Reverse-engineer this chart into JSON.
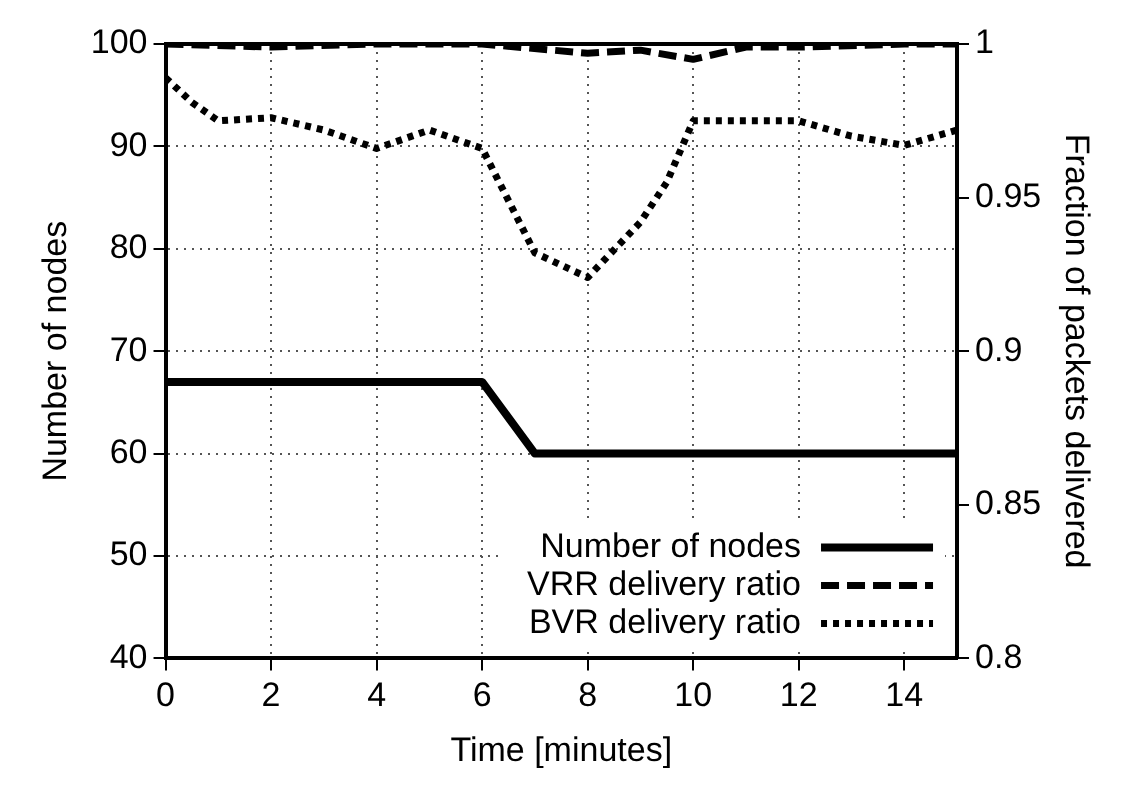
{
  "chart_data": {
    "type": "line",
    "xlabel": "Time [minutes]",
    "ylabel": "Number of nodes",
    "y2label": "Fraction of packets delivered",
    "xlim": [
      0,
      15
    ],
    "xticks": [
      0,
      2,
      4,
      6,
      8,
      10,
      12,
      14
    ],
    "ylim": [
      40,
      100
    ],
    "yticks": [
      40,
      50,
      60,
      70,
      80,
      90,
      100
    ],
    "y2lim": [
      0.8,
      1
    ],
    "y2ticks": [
      0.8,
      0.85,
      0.9,
      0.95,
      1
    ],
    "grid": true,
    "legend": "bottom right",
    "marker": "none",
    "series": [
      {
        "name": "Number of nodes",
        "color": "#000000",
        "line_style": "solid",
        "x": [
          0,
          6,
          7,
          15
        ],
        "values": [
          67,
          67,
          60,
          60
        ]
      },
      {
        "name": "VRR delivery ratio",
        "color": "#000000",
        "line_style": "dashed",
        "axis": "y2",
        "x": [
          0,
          2,
          4,
          6,
          8,
          9,
          10,
          11,
          12,
          14,
          15
        ],
        "values": [
          1,
          0.999,
          1,
          1,
          0.997,
          0.998,
          0.995,
          0.999,
          0.999,
          1,
          1
        ]
      },
      {
        "name": "BVR delivery ratio",
        "color": "#000000",
        "line_style": "dotted",
        "axis": "y2",
        "x": [
          0,
          0.5,
          1,
          2,
          3,
          4,
          5,
          6,
          6.5,
          7,
          8,
          9,
          9.5,
          10,
          11,
          12,
          13,
          14,
          15
        ],
        "values": [
          0.989,
          0.981,
          0.975,
          0.976,
          0.972,
          0.966,
          0.972,
          0.966,
          0.949,
          0.932,
          0.924,
          0.942,
          0.955,
          0.975,
          0.975,
          0.975,
          0.97,
          0.967,
          0.972
        ]
      }
    ]
  }
}
